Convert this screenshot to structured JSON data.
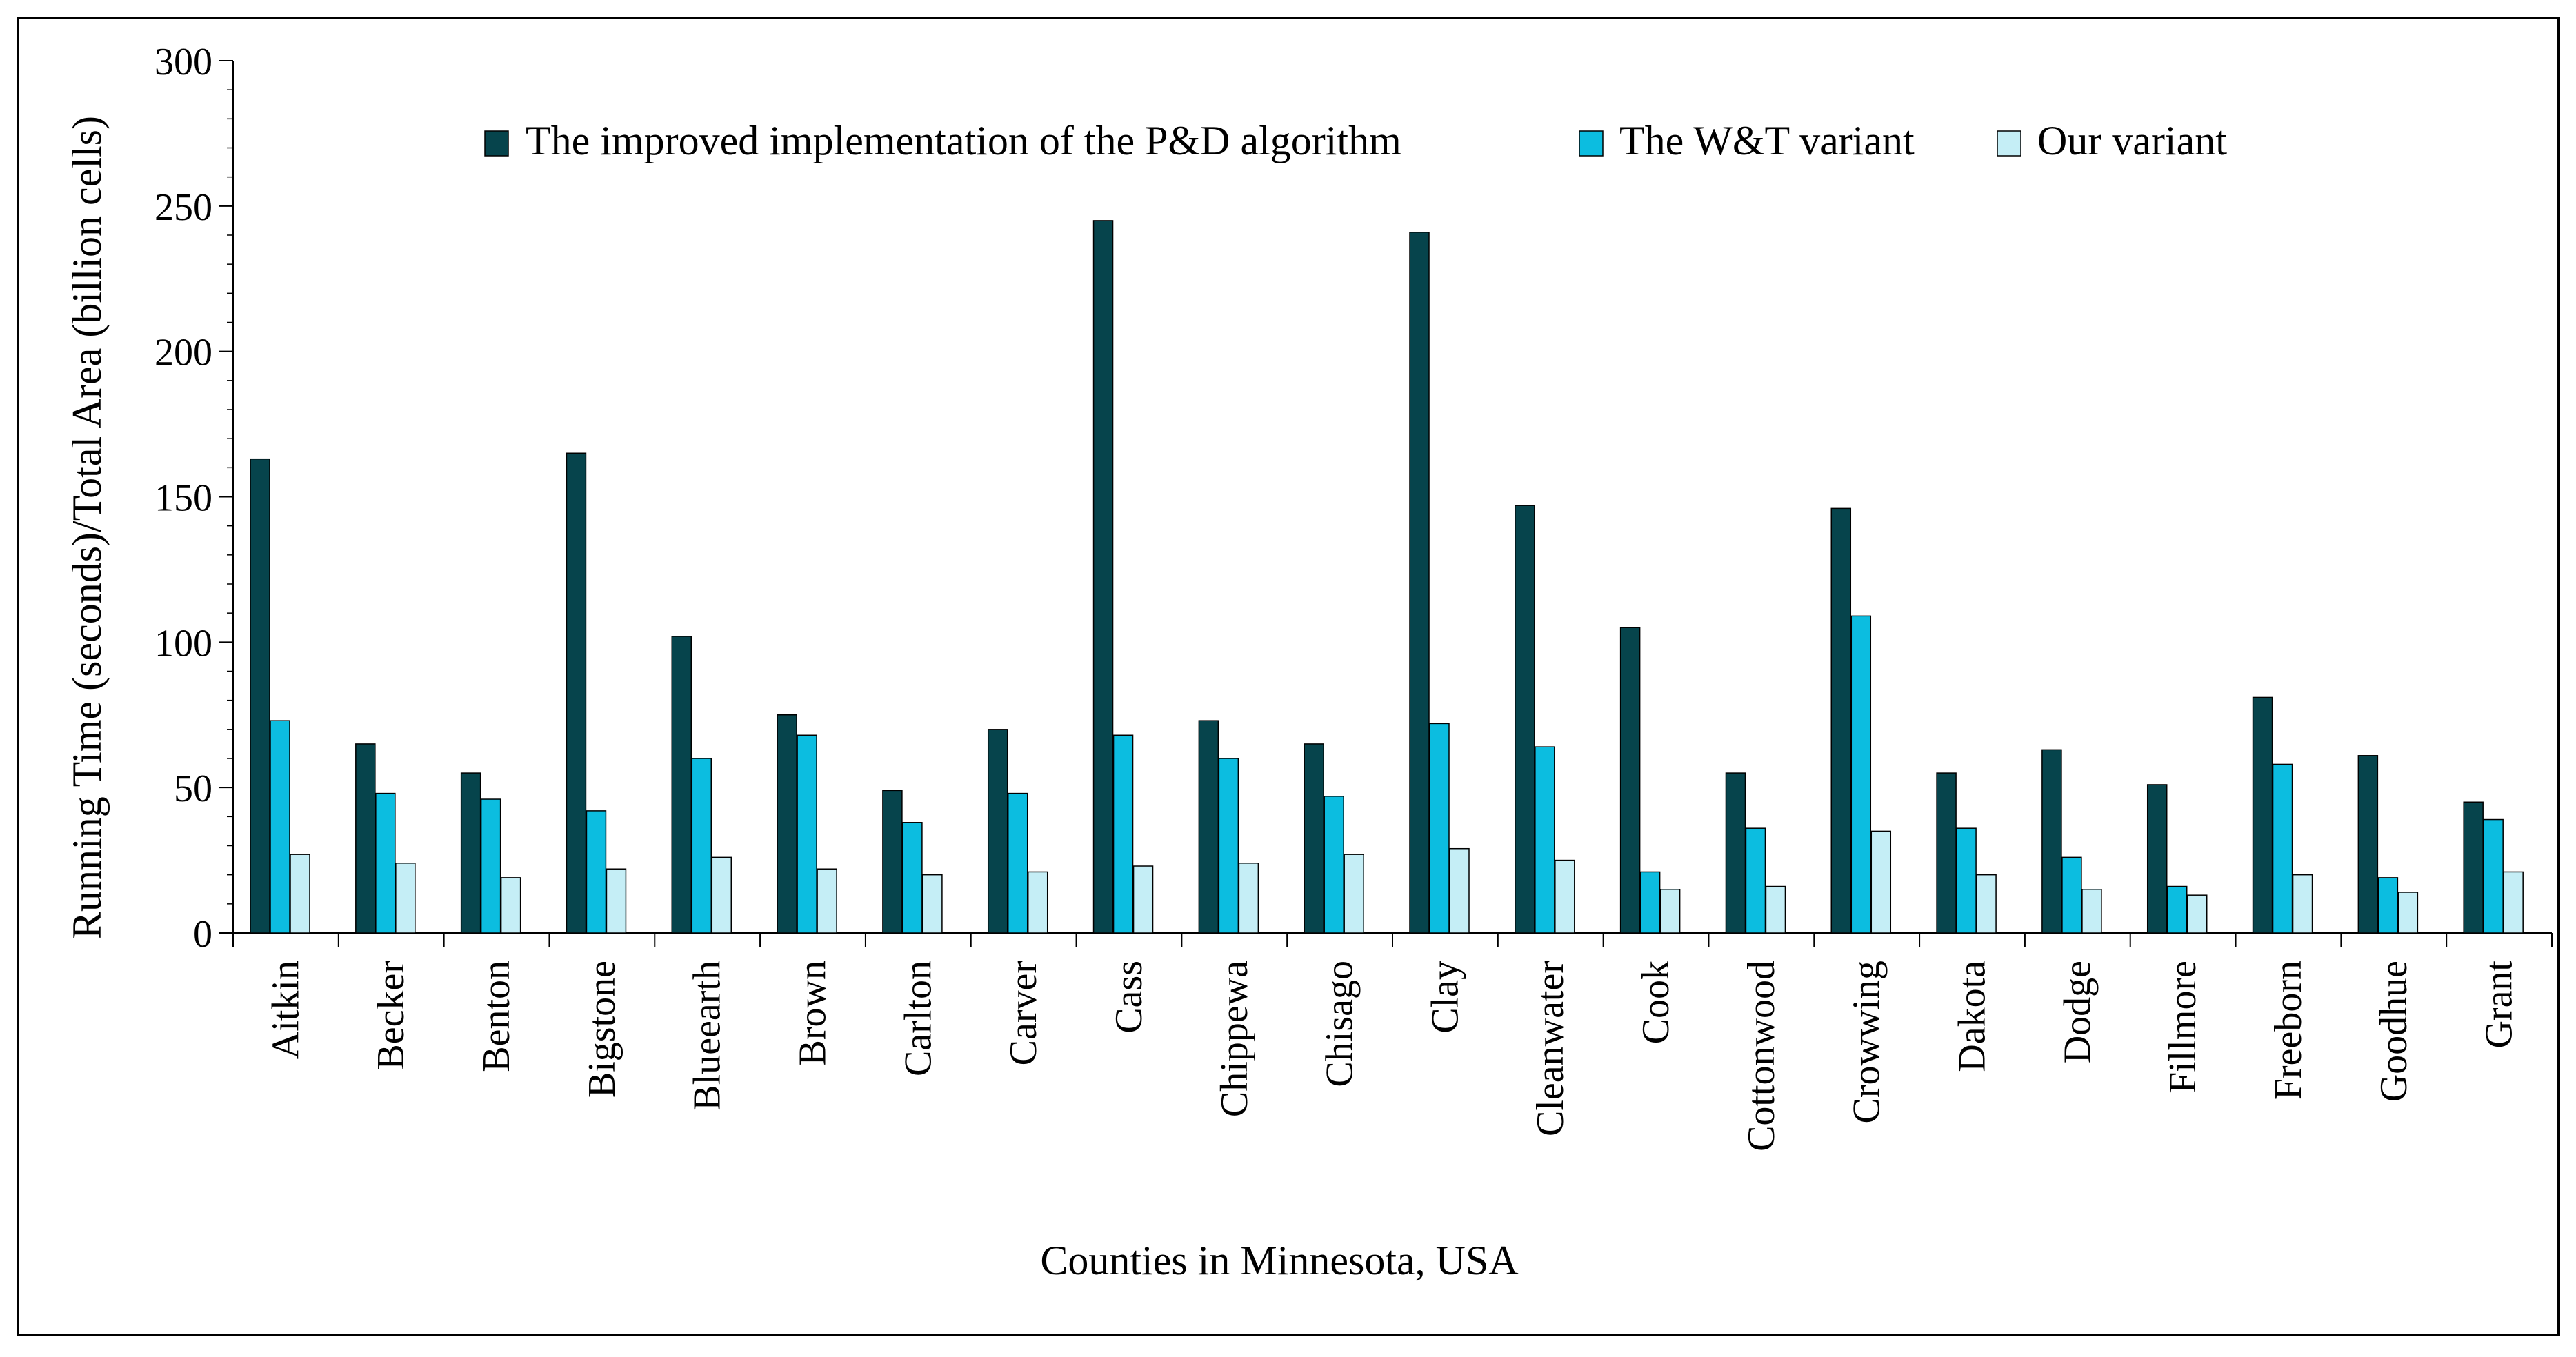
{
  "chart_data": {
    "type": "bar",
    "title": "",
    "xlabel": "Counties in Minnesota, USA",
    "ylabel": "Running Time (seconds)/Total Area (billion cells)",
    "ylim": [
      0,
      300
    ],
    "yticks": [
      0,
      50,
      100,
      150,
      200,
      250,
      300
    ],
    "ytick_labels": [
      "0",
      "50",
      "100",
      "150",
      "200",
      "250",
      "300"
    ],
    "minor_ytick_step": 10,
    "grid": false,
    "legend_position": "top",
    "categories": [
      "Aitkin",
      "Becker",
      "Benton",
      "Bigstone",
      "Blueearth",
      "Brown",
      "Carlton",
      "Carver",
      "Cass",
      "Chippewa",
      "Chisago",
      "Clay",
      "Cleanwater",
      "Cook",
      "Cottonwood",
      "Crowwing",
      "Dakota",
      "Dodge",
      "Fillmore",
      "Freeborn",
      "Goodhue",
      "Grant"
    ],
    "series": [
      {
        "name": "The improved implementation of the P&D algorithm",
        "color": "#06444c",
        "values": [
          163,
          65,
          55,
          165,
          102,
          75,
          49,
          70,
          245,
          73,
          65,
          241,
          147,
          105,
          55,
          146,
          55,
          63,
          51,
          81,
          61,
          45
        ]
      },
      {
        "name": "The W&T variant",
        "color": "#0cbde0",
        "values": [
          73,
          48,
          46,
          42,
          60,
          68,
          38,
          48,
          68,
          60,
          47,
          72,
          64,
          21,
          36,
          109,
          36,
          26,
          16,
          58,
          19,
          39
        ]
      },
      {
        "name": "Our variant",
        "color": "#c5eef6",
        "values": [
          27,
          24,
          19,
          22,
          26,
          22,
          20,
          21,
          23,
          24,
          27,
          29,
          25,
          15,
          16,
          35,
          20,
          15,
          13,
          20,
          14,
          21
        ]
      }
    ]
  }
}
